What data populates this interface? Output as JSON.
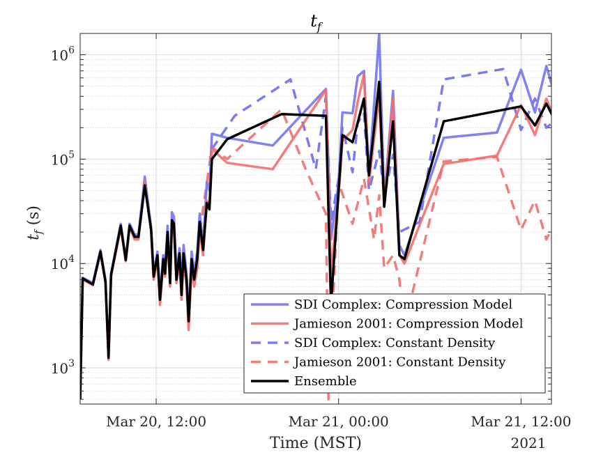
{
  "chart_data": {
    "type": "line",
    "title": "t_f",
    "title_main": "t",
    "title_sub": "f",
    "xlabel": "Time (MST)",
    "ylabel_main": "t",
    "ylabel_sub": "f",
    "ylabel_unit": " (s)",
    "yscale": "log",
    "ylim": [
      450,
      1600000
    ],
    "xlim": [
      "2021-03-20T07:00",
      "2021-03-21T14:00"
    ],
    "xticks": [
      {
        "t": "2021-03-20T12:00",
        "label": "Mar 20, 12:00"
      },
      {
        "t": "2021-03-21T00:00",
        "label": "Mar 21, 00:00"
      },
      {
        "t": "2021-03-21T12:00",
        "label": "Mar 21, 12:00"
      }
    ],
    "year_label": "2021",
    "yticks": [
      {
        "exp": 3,
        "base": "10",
        "sup": "3"
      },
      {
        "exp": 4,
        "base": "10",
        "sup": "4"
      },
      {
        "exp": 5,
        "base": "10",
        "sup": "5"
      },
      {
        "exp": 6,
        "base": "10",
        "sup": "6"
      }
    ],
    "grid": true,
    "legend_position": "bottom-right",
    "series": [
      {
        "name": "SDI Complex: Compression Model",
        "color": "#7373f2",
        "dash": "solid",
        "points": [
          [
            "2021-03-20T07:00",
            500
          ],
          [
            "2021-03-20T07:10",
            7300
          ],
          [
            "2021-03-20T07:50",
            6500
          ],
          [
            "2021-03-20T08:20",
            13500
          ],
          [
            "2021-03-20T08:40",
            7000
          ],
          [
            "2021-03-20T08:52",
            1300
          ],
          [
            "2021-03-20T09:02",
            8000
          ],
          [
            "2021-03-20T09:40",
            24000
          ],
          [
            "2021-03-20T10:00",
            11000
          ],
          [
            "2021-03-20T10:15",
            24000
          ],
          [
            "2021-03-20T10:35",
            19000
          ],
          [
            "2021-03-20T10:50",
            19000
          ],
          [
            "2021-03-20T11:15",
            68000
          ],
          [
            "2021-03-20T11:40",
            22000
          ],
          [
            "2021-03-20T11:50",
            8000
          ],
          [
            "2021-03-20T12:05",
            13000
          ],
          [
            "2021-03-20T12:15",
            5000
          ],
          [
            "2021-03-20T12:28",
            12000
          ],
          [
            "2021-03-20T12:35",
            9000
          ],
          [
            "2021-03-20T12:45",
            23000
          ],
          [
            "2021-03-20T12:55",
            7000
          ],
          [
            "2021-03-20T13:02",
            31000
          ],
          [
            "2021-03-20T13:10",
            28000
          ],
          [
            "2021-03-20T13:20",
            8000
          ],
          [
            "2021-03-20T13:32",
            14000
          ],
          [
            "2021-03-20T13:40",
            6000
          ],
          [
            "2021-03-20T13:48",
            15000
          ],
          [
            "2021-03-20T14:00",
            8000
          ],
          [
            "2021-03-20T14:08",
            3000
          ],
          [
            "2021-03-20T14:20",
            13000
          ],
          [
            "2021-03-20T14:30",
            8000
          ],
          [
            "2021-03-20T14:42",
            13000
          ],
          [
            "2021-03-20T14:52",
            30000
          ],
          [
            "2021-03-20T15:05",
            15000
          ],
          [
            "2021-03-20T15:20",
            60000
          ],
          [
            "2021-03-20T15:30",
            50000
          ],
          [
            "2021-03-20T15:40",
            175000
          ],
          [
            "2021-03-20T16:40",
            160000
          ],
          [
            "2021-03-20T19:40",
            135000
          ],
          [
            "2021-03-20T23:10",
            470000
          ],
          [
            "2021-03-20T23:30",
            17000
          ],
          [
            "2021-03-21T00:00",
            60000
          ],
          [
            "2021-03-21T00:15",
            280000
          ],
          [
            "2021-03-21T00:55",
            275000
          ],
          [
            "2021-03-21T01:15",
            620000
          ],
          [
            "2021-03-21T01:40",
            700000
          ],
          [
            "2021-03-21T02:00",
            70000
          ],
          [
            "2021-03-21T02:40",
            1600000
          ],
          [
            "2021-03-21T03:00",
            40000
          ],
          [
            "2021-03-21T03:35",
            450000
          ],
          [
            "2021-03-21T04:00",
            15000
          ],
          [
            "2021-03-21T04:20",
            12000
          ],
          [
            "2021-03-21T06:55",
            160000
          ],
          [
            "2021-03-21T10:25",
            180000
          ],
          [
            "2021-03-21T12:00",
            720000
          ],
          [
            "2021-03-21T12:55",
            280000
          ],
          [
            "2021-03-21T13:40",
            780000
          ],
          [
            "2021-03-21T14:20",
            360000
          ],
          [
            "2021-03-21T14:40",
            7000
          ],
          [
            "2021-03-21T14:55",
            140000
          ]
        ]
      },
      {
        "name": "Jamieson 2001: Compression Model",
        "color": "#f26e6e",
        "dash": "solid",
        "points": [
          [
            "2021-03-20T07:00",
            500
          ],
          [
            "2021-03-20T07:10",
            7000
          ],
          [
            "2021-03-20T07:50",
            6200
          ],
          [
            "2021-03-20T08:20",
            12500
          ],
          [
            "2021-03-20T08:40",
            6500
          ],
          [
            "2021-03-20T08:52",
            1200
          ],
          [
            "2021-03-20T09:02",
            7500
          ],
          [
            "2021-03-20T09:40",
            22000
          ],
          [
            "2021-03-20T10:00",
            10500
          ],
          [
            "2021-03-20T10:15",
            22000
          ],
          [
            "2021-03-20T10:35",
            17000
          ],
          [
            "2021-03-20T10:50",
            17000
          ],
          [
            "2021-03-20T11:15",
            60000
          ],
          [
            "2021-03-20T11:40",
            20000
          ],
          [
            "2021-03-20T11:50",
            7000
          ],
          [
            "2021-03-20T12:05",
            11000
          ],
          [
            "2021-03-20T12:15",
            4000
          ],
          [
            "2021-03-20T12:28",
            10000
          ],
          [
            "2021-03-20T12:35",
            7500
          ],
          [
            "2021-03-20T12:45",
            18000
          ],
          [
            "2021-03-20T12:55",
            6000
          ],
          [
            "2021-03-20T13:02",
            25000
          ],
          [
            "2021-03-20T13:10",
            22000
          ],
          [
            "2021-03-20T13:20",
            6500
          ],
          [
            "2021-03-20T13:32",
            11000
          ],
          [
            "2021-03-20T13:40",
            4500
          ],
          [
            "2021-03-20T13:48",
            11000
          ],
          [
            "2021-03-20T14:00",
            6000
          ],
          [
            "2021-03-20T14:08",
            2300
          ],
          [
            "2021-03-20T14:20",
            9000
          ],
          [
            "2021-03-20T14:30",
            6000
          ],
          [
            "2021-03-20T14:42",
            9000
          ],
          [
            "2021-03-20T14:52",
            21000
          ],
          [
            "2021-03-20T15:05",
            12000
          ],
          [
            "2021-03-20T15:20",
            40000
          ],
          [
            "2021-03-20T15:30",
            35000
          ],
          [
            "2021-03-20T15:40",
            125000
          ],
          [
            "2021-03-20T16:40",
            92000
          ],
          [
            "2021-03-20T19:40",
            80000
          ],
          [
            "2021-03-20T23:10",
            460000
          ],
          [
            "2021-03-20T23:30",
            8000
          ],
          [
            "2021-03-21T00:00",
            45000
          ],
          [
            "2021-03-21T00:15",
            150000
          ],
          [
            "2021-03-21T00:55",
            190000
          ],
          [
            "2021-03-21T01:15",
            350000
          ],
          [
            "2021-03-21T01:40",
            650000
          ],
          [
            "2021-03-21T02:00",
            60000
          ],
          [
            "2021-03-21T02:40",
            400000
          ],
          [
            "2021-03-21T03:00",
            35000
          ],
          [
            "2021-03-21T03:35",
            380000
          ],
          [
            "2021-03-21T04:00",
            12000
          ],
          [
            "2021-03-21T04:20",
            10000
          ],
          [
            "2021-03-21T06:55",
            90000
          ],
          [
            "2021-03-21T10:25",
            108000
          ],
          [
            "2021-03-21T12:00",
            330000
          ],
          [
            "2021-03-21T12:55",
            170000
          ],
          [
            "2021-03-21T13:40",
            380000
          ],
          [
            "2021-03-21T14:20",
            220000
          ],
          [
            "2021-03-21T14:40",
            7000
          ],
          [
            "2021-03-21T14:55",
            90000
          ]
        ]
      },
      {
        "name": "SDI Complex: Constant Density",
        "color": "#6b6bf2",
        "dash": "dashed",
        "points": [
          [
            "2021-03-20T15:40",
            125000
          ],
          [
            "2021-03-20T17:10",
            260000
          ],
          [
            "2021-03-20T20:50",
            580000
          ],
          [
            "2021-03-20T22:30",
            80000
          ],
          [
            "2021-03-20T23:10",
            400000
          ],
          [
            "2021-03-20T23:30",
            25000
          ],
          [
            "2021-03-21T00:00",
            65000
          ],
          [
            "2021-03-21T00:15",
            200000
          ],
          [
            "2021-03-21T00:55",
            75000
          ],
          [
            "2021-03-21T01:15",
            220000
          ],
          [
            "2021-03-21T01:40",
            280000
          ],
          [
            "2021-03-21T02:00",
            50000
          ],
          [
            "2021-03-21T02:40",
            120000
          ],
          [
            "2021-03-21T03:00",
            45000
          ],
          [
            "2021-03-21T03:35",
            110000
          ],
          [
            "2021-03-21T04:00",
            20000
          ],
          [
            "2021-03-21T05:20",
            25000
          ],
          [
            "2021-03-21T06:55",
            580000
          ],
          [
            "2021-03-21T10:50",
            730000
          ],
          [
            "2021-03-21T12:00",
            190000
          ],
          [
            "2021-03-21T12:55",
            380000
          ],
          [
            "2021-03-21T13:40",
            200000
          ],
          [
            "2021-03-21T14:20",
            240000
          ],
          [
            "2021-03-21T14:40",
            20000
          ],
          [
            "2021-03-21T14:55",
            50000
          ]
        ]
      },
      {
        "name": "Jamieson 2001: Constant Density",
        "color": "#f26e6e",
        "dash": "dashed",
        "points": [
          [
            "2021-03-20T14:52",
            20000
          ],
          [
            "2021-03-20T15:40",
            130000
          ],
          [
            "2021-03-20T16:40",
            100000
          ],
          [
            "2021-03-20T20:15",
            300000
          ],
          [
            "2021-03-20T21:50",
            80000
          ],
          [
            "2021-03-20T23:10",
            30000
          ],
          [
            "2021-03-20T23:20",
            500
          ],
          [
            "2021-03-21T00:00",
            60000
          ],
          [
            "2021-03-21T00:55",
            24000
          ],
          [
            "2021-03-21T01:40",
            65000
          ],
          [
            "2021-03-21T02:20",
            17000
          ],
          [
            "2021-03-21T02:40",
            45000
          ],
          [
            "2021-03-21T03:00",
            9000
          ],
          [
            "2021-03-21T03:35",
            12000
          ],
          [
            "2021-03-21T04:00",
            7000
          ],
          [
            "2021-03-21T04:20",
            2500
          ],
          [
            "2021-03-21T06:55",
            95000
          ],
          [
            "2021-03-21T10:25",
            105000
          ],
          [
            "2021-03-21T12:00",
            21000
          ],
          [
            "2021-03-21T12:55",
            40000
          ],
          [
            "2021-03-21T13:40",
            17000
          ],
          [
            "2021-03-21T14:20",
            26000
          ],
          [
            "2021-03-21T14:40",
            20000
          ],
          [
            "2021-03-21T14:55",
            45000
          ]
        ]
      },
      {
        "name": "Ensemble",
        "color": "#000000",
        "dash": "solid",
        "points": [
          [
            "2021-03-20T07:00",
            500
          ],
          [
            "2021-03-20T07:10",
            7200
          ],
          [
            "2021-03-20T07:50",
            6300
          ],
          [
            "2021-03-20T08:20",
            13000
          ],
          [
            "2021-03-20T08:40",
            6700
          ],
          [
            "2021-03-20T08:52",
            1250
          ],
          [
            "2021-03-20T09:02",
            7800
          ],
          [
            "2021-03-20T09:40",
            23000
          ],
          [
            "2021-03-20T10:00",
            10800
          ],
          [
            "2021-03-20T10:15",
            23000
          ],
          [
            "2021-03-20T10:35",
            18000
          ],
          [
            "2021-03-20T10:50",
            18000
          ],
          [
            "2021-03-20T11:15",
            56000
          ],
          [
            "2021-03-20T11:40",
            21000
          ],
          [
            "2021-03-20T11:50",
            7500
          ],
          [
            "2021-03-20T12:05",
            12000
          ],
          [
            "2021-03-20T12:15",
            4500
          ],
          [
            "2021-03-20T12:28",
            11000
          ],
          [
            "2021-03-20T12:35",
            8000
          ],
          [
            "2021-03-20T12:45",
            20000
          ],
          [
            "2021-03-20T12:55",
            6500
          ],
          [
            "2021-03-20T13:02",
            26000
          ],
          [
            "2021-03-20T13:10",
            24000
          ],
          [
            "2021-03-20T13:20",
            7000
          ],
          [
            "2021-03-20T13:32",
            12500
          ],
          [
            "2021-03-20T13:40",
            5000
          ],
          [
            "2021-03-20T13:48",
            12500
          ],
          [
            "2021-03-20T14:00",
            7000
          ],
          [
            "2021-03-20T14:08",
            2800
          ],
          [
            "2021-03-20T14:20",
            11000
          ],
          [
            "2021-03-20T14:30",
            7000
          ],
          [
            "2021-03-20T14:42",
            11000
          ],
          [
            "2021-03-20T14:52",
            25000
          ],
          [
            "2021-03-20T15:05",
            13500
          ],
          [
            "2021-03-20T15:20",
            38000
          ],
          [
            "2021-03-20T15:30",
            33000
          ],
          [
            "2021-03-20T15:40",
            100000
          ],
          [
            "2021-03-20T16:40",
            155000
          ],
          [
            "2021-03-20T20:15",
            270000
          ],
          [
            "2021-03-20T23:10",
            260000
          ],
          [
            "2021-03-20T23:30",
            4000
          ],
          [
            "2021-03-21T00:00",
            50000
          ],
          [
            "2021-03-21T00:15",
            170000
          ],
          [
            "2021-03-21T00:55",
            145000
          ],
          [
            "2021-03-21T01:40",
            380000
          ],
          [
            "2021-03-21T02:00",
            70000
          ],
          [
            "2021-03-21T02:40",
            550000
          ],
          [
            "2021-03-21T03:00",
            35000
          ],
          [
            "2021-03-21T03:35",
            230000
          ],
          [
            "2021-03-21T04:00",
            12000
          ],
          [
            "2021-03-21T04:20",
            11000
          ],
          [
            "2021-03-21T06:55",
            230000
          ],
          [
            "2021-03-21T12:00",
            320000
          ],
          [
            "2021-03-21T12:55",
            210000
          ],
          [
            "2021-03-21T13:40",
            340000
          ],
          [
            "2021-03-21T14:20",
            220000
          ],
          [
            "2021-03-21T14:40",
            4000
          ],
          [
            "2021-03-21T14:55",
            70000
          ]
        ]
      }
    ]
  }
}
